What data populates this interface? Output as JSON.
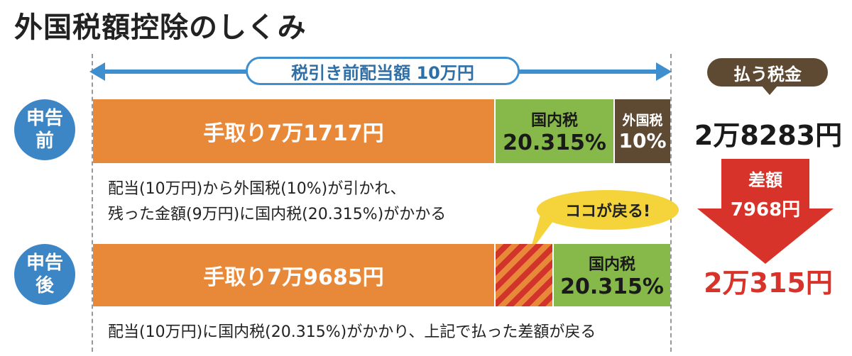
{
  "title": "外国税額控除のしくみ",
  "range_label": "税引き前配当額 10万円",
  "before": {
    "badge_line1": "申告",
    "badge_line2": "前",
    "takehome": "手取り7万1717円",
    "domestic_label": "国内税",
    "domestic_rate": "20.315%",
    "foreign_label": "外国税",
    "foreign_rate": "10%",
    "note_line1": "配当(10万円)から外国税(10%)が引かれ、",
    "note_line2": "残った金額(9万円)に国内税(20.315%)がかかる"
  },
  "after": {
    "badge_line1": "申告",
    "badge_line2": "後",
    "takehome": "手取り7万9685円",
    "domestic_label": "国内税",
    "domestic_rate": "20.315%",
    "note": "配当(10万円)に国内税(20.315%)がかかり、上記で払った差額が戻る"
  },
  "bubble": "ココが戻る!",
  "tax_paid": {
    "label": "払う税金",
    "before_amount": "2万8283円",
    "diff_label": "差額",
    "diff_amount": "7968円",
    "after_amount": "2万315円"
  },
  "colors": {
    "takehome": "#e8893a",
    "domestic_tax": "#86b94a",
    "foreign_tax": "#5e4a33",
    "refund_hatch": "#d2342b",
    "badge": "#3d86c6",
    "range_arrow": "#3f8fcf",
    "diff_arrow": "#d8332a",
    "bubble": "#f4d43a"
  }
}
